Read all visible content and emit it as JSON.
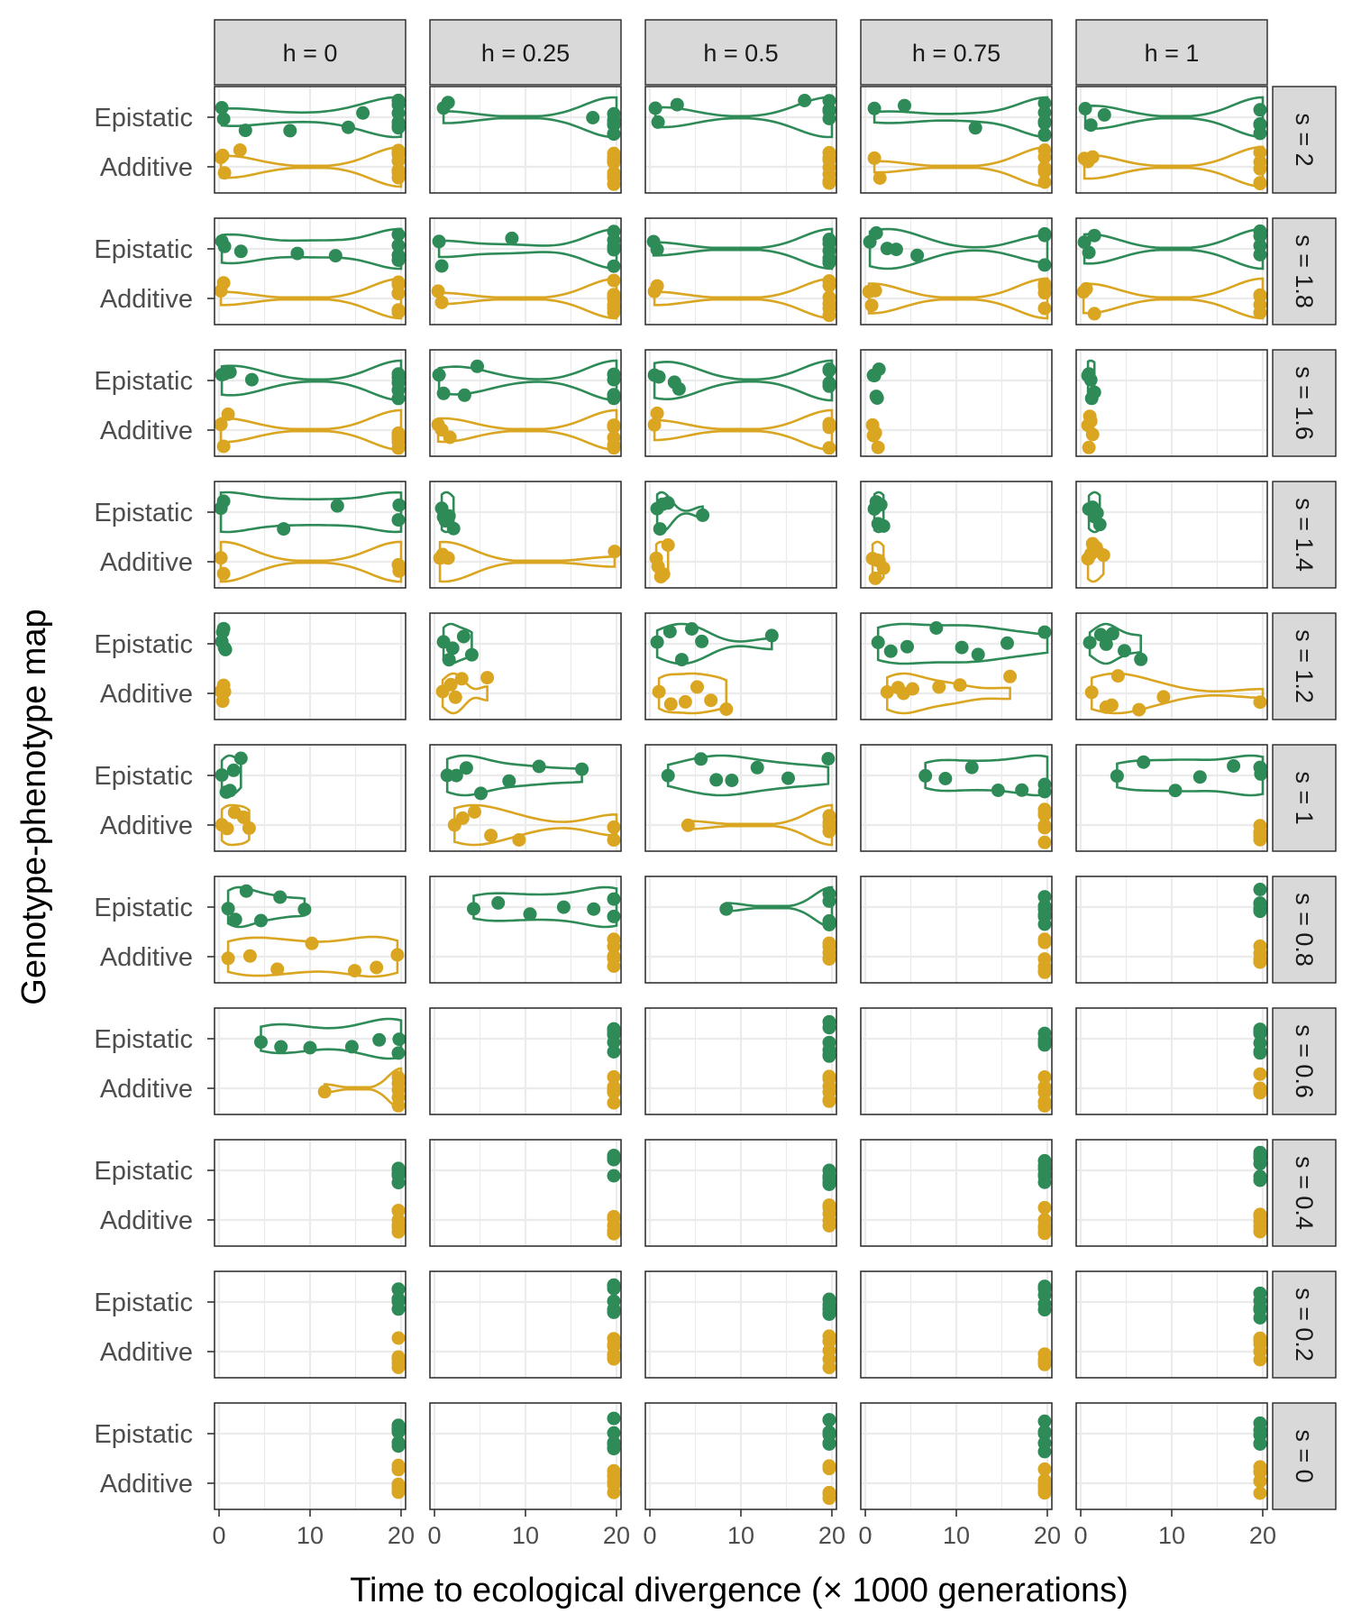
{
  "chart_data": {
    "type": "scatter",
    "subtype": "faceted violin + jittered points",
    "xlabel": "Time to ecological divergence (× 1000 generations)",
    "ylabel": "Genotype-phenotype map",
    "x_ticks": [
      0,
      10,
      20
    ],
    "x_range": [
      -0.5,
      20.5
    ],
    "y_categories": [
      "Epistatic",
      "Additive"
    ],
    "col_facet_labels": [
      "h = 0",
      "h = 0.25",
      "h = 0.5",
      "h = 0.75",
      "h = 1"
    ],
    "row_facet_labels": [
      "s = 2",
      "s = 1.8",
      "s = 1.6",
      "s = 1.4",
      "s = 1.2",
      "s = 1",
      "s = 0.8",
      "s = 0.6",
      "s = 0.4",
      "s = 0.2",
      "s = 0"
    ],
    "colors": {
      "Epistatic": "#2e8b57",
      "Additive": "#daa520"
    },
    "grid": true,
    "legend": "none",
    "panels": {
      "0_0": {
        "Epistatic": [
          0.3,
          0.5,
          7.8,
          14.2,
          15.8,
          2.9,
          20,
          20,
          20,
          20,
          20,
          20
        ],
        "Additive": [
          0.2,
          0.4,
          0.6,
          2.3,
          20,
          20,
          20,
          20,
          20,
          20,
          20
        ]
      },
      "0_1": {
        "Epistatic": [
          1.0,
          1.5,
          17.4,
          20,
          20,
          20,
          20,
          20,
          20
        ],
        "Additive": [
          20,
          20,
          20,
          20,
          20,
          20,
          20,
          20,
          20,
          20
        ]
      },
      "0_2": {
        "Epistatic": [
          0.6,
          0.9,
          3.0,
          17.0,
          20,
          20,
          20,
          20,
          20
        ],
        "Additive": [
          20,
          20,
          20,
          20,
          20,
          20,
          20,
          20,
          20,
          20
        ]
      },
      "0_3": {
        "Epistatic": [
          1.0,
          4.3,
          12.1,
          20,
          20,
          20,
          20,
          20,
          20
        ],
        "Additive": [
          1.0,
          1.6,
          20,
          20,
          20,
          20,
          20,
          20,
          20
        ]
      },
      "0_4": {
        "Epistatic": [
          0.5,
          1.1,
          2.6,
          20,
          20,
          20,
          20,
          20
        ],
        "Additive": [
          0.4,
          0.8,
          1.3,
          20,
          20,
          20,
          20,
          20
        ]
      },
      "1_0": {
        "Epistatic": [
          0.3,
          0.6,
          2.4,
          8.6,
          12.8,
          20,
          20,
          20,
          20
        ],
        "Additive": [
          0.2,
          0.5,
          20,
          20,
          20,
          20,
          20,
          20
        ]
      },
      "1_1": {
        "Epistatic": [
          0.5,
          0.8,
          8.5,
          20,
          20,
          20,
          20,
          20
        ],
        "Additive": [
          0.4,
          0.8,
          20,
          20,
          20,
          20,
          20,
          20,
          20
        ]
      },
      "1_2": {
        "Epistatic": [
          0.4,
          0.8,
          20,
          20,
          20,
          20,
          20,
          20
        ],
        "Additive": [
          0.5,
          0.8,
          20,
          20,
          20,
          20,
          20,
          20
        ]
      },
      "1_3": {
        "Epistatic": [
          0.5,
          1.2,
          2.4,
          3.4,
          5.7,
          20,
          20,
          20
        ],
        "Additive": [
          0.4,
          0.7,
          1.1,
          20,
          20,
          20,
          20
        ]
      },
      "1_4": {
        "Epistatic": [
          0.4,
          0.9,
          1.5,
          20,
          20,
          20,
          20
        ],
        "Additive": [
          0.3,
          0.6,
          1.5,
          20,
          20,
          20,
          20
        ]
      },
      "2_0": {
        "Epistatic": [
          0.3,
          0.6,
          1.2,
          3.6,
          20,
          20,
          20,
          20,
          20
        ],
        "Additive": [
          0.2,
          0.5,
          1.0,
          20,
          20,
          20,
          20,
          20
        ]
      },
      "2_1": {
        "Epistatic": [
          0.5,
          1.0,
          3.3,
          4.7,
          20,
          20,
          20,
          20,
          20
        ],
        "Additive": [
          0.4,
          0.8,
          1.7,
          20,
          20,
          20,
          20,
          20
        ]
      },
      "2_2": {
        "Epistatic": [
          0.5,
          1.0,
          2.7,
          3.2,
          20,
          20,
          20,
          20
        ],
        "Additive": [
          0.5,
          0.8,
          20,
          20,
          20,
          20
        ]
      },
      "2_3": {
        "Epistatic": [
          0.9,
          1.2,
          1.5,
          1.0,
          1.3
        ],
        "Additive": [
          0.8,
          1.1,
          1.4,
          1.0,
          0.9
        ]
      },
      "2_4": {
        "Epistatic": [
          0.8,
          1.1,
          1.5,
          1.2,
          0.9
        ],
        "Additive": [
          0.8,
          1.0,
          1.3,
          1.1,
          0.9
        ]
      },
      "3_0": {
        "Epistatic": [
          0.2,
          0.5,
          7.1,
          13.0,
          19.8,
          20
        ],
        "Additive": [
          0.2,
          0.5,
          19.8,
          20
        ]
      },
      "3_1": {
        "Epistatic": [
          0.8,
          1.2,
          1.6,
          2.1,
          1.0
        ],
        "Additive": [
          0.6,
          1.1,
          1.5,
          19.8,
          0.9
        ]
      },
      "3_2": {
        "Epistatic": [
          0.8,
          1.4,
          2.0,
          5.8,
          1.1
        ],
        "Additive": [
          0.7,
          1.2,
          2.0,
          1.5,
          0.9
        ]
      },
      "3_3": {
        "Epistatic": [
          1.0,
          1.4,
          2.0,
          1.2,
          1.7
        ],
        "Additive": [
          0.8,
          1.3,
          2.0,
          1.5,
          1.1
        ]
      },
      "3_4": {
        "Epistatic": [
          0.9,
          1.3,
          1.8,
          2.1,
          1.5
        ],
        "Additive": [
          0.8,
          1.3,
          2.5,
          1.7,
          1.1
        ]
      },
      "4_0": {
        "Epistatic": [
          0.3,
          0.5,
          0.7,
          0.4,
          0.6
        ],
        "Additive": [
          0.2,
          0.4,
          0.6,
          0.3,
          0.5
        ]
      },
      "4_1": {
        "Epistatic": [
          1.0,
          2.0,
          3.2,
          4.1,
          1.6
        ],
        "Additive": [
          0.9,
          1.8,
          3.0,
          5.8,
          2.3
        ]
      },
      "4_2": {
        "Epistatic": [
          0.8,
          2.2,
          3.5,
          5.7,
          13.4,
          4.6
        ],
        "Additive": [
          1.0,
          2.3,
          3.9,
          6.7,
          8.4,
          5.2
        ]
      },
      "4_3": {
        "Epistatic": [
          1.4,
          2.8,
          4.6,
          7.8,
          10.6,
          12.4,
          15.6,
          20.0
        ],
        "Additive": [
          2.4,
          3.6,
          5.2,
          8.1,
          10.4,
          15.9,
          4.2
        ]
      },
      "4_4": {
        "Epistatic": [
          1.0,
          2.2,
          3.5,
          4.8,
          6.6,
          2.8
        ],
        "Additive": [
          1.2,
          2.8,
          4.1,
          6.4,
          9.1,
          20.0,
          3.4
        ]
      },
      "5_0": {
        "Epistatic": [
          0.3,
          0.8,
          1.6,
          2.4,
          1.2
        ],
        "Additive": [
          0.3,
          0.9,
          1.7,
          2.7,
          3.3
        ]
      },
      "5_1": {
        "Epistatic": [
          1.4,
          2.4,
          5.1,
          8.2,
          11.5,
          16.2,
          3.5
        ],
        "Additive": [
          2.2,
          4.4,
          6.2,
          9.3,
          20.0,
          20.0,
          3.1
        ]
      },
      "5_2": {
        "Epistatic": [
          2.0,
          5.6,
          9.0,
          11.8,
          15.2,
          19.6,
          7.3
        ],
        "Additive": [
          4.2,
          20.0,
          20.0,
          20.0,
          20.0,
          20.0
        ]
      },
      "5_3": {
        "Epistatic": [
          6.6,
          8.8,
          11.7,
          14.6,
          17.2,
          20.0,
          20.0
        ],
        "Additive": [
          20.0,
          20.0,
          20.0,
          20.0,
          20.0,
          20.0
        ]
      },
      "5_4": {
        "Epistatic": [
          4.0,
          6.9,
          10.4,
          13.1,
          16.8,
          19.8,
          20.0
        ],
        "Additive": [
          20.0,
          20.0,
          20.0,
          20.0,
          20.0,
          20.0
        ]
      },
      "6_0": {
        "Epistatic": [
          1.0,
          1.8,
          3.0,
          4.6,
          6.7,
          9.4
        ],
        "Additive": [
          1.0,
          3.4,
          6.4,
          10.2,
          14.9,
          17.3,
          19.6
        ]
      },
      "6_1": {
        "Epistatic": [
          4.3,
          7.0,
          10.5,
          14.2,
          17.5,
          20.0,
          20.0
        ],
        "Additive": [
          20.0,
          20.0,
          20.0,
          20.0,
          20.0,
          20.0
        ]
      },
      "6_2": {
        "Epistatic": [
          8.4,
          20.0,
          20.0,
          20.0,
          20.0,
          20.0
        ],
        "Additive": [
          20.0,
          20.0,
          20.0,
          20.0,
          20.0,
          20.0
        ]
      },
      "6_3": {
        "Epistatic": [
          20.0,
          20.0,
          20.0,
          20.0,
          20.0,
          20.0
        ],
        "Additive": [
          20.0,
          20.0,
          20.0,
          20.0,
          20.0,
          20.0
        ]
      },
      "6_4": {
        "Epistatic": [
          20.0,
          20.0,
          20.0,
          20.0,
          20.0,
          20.0
        ],
        "Additive": [
          20.0,
          20.0,
          20.0,
          20.0,
          20.0,
          20.0
        ]
      },
      "7_0": {
        "Epistatic": [
          4.6,
          6.8,
          10.0,
          14.6,
          17.6,
          19.8,
          20.0
        ],
        "Additive": [
          11.6,
          20.0,
          20.0,
          20.0,
          20.0,
          20.0
        ]
      },
      "7_1": {
        "Epistatic": [
          20.0,
          20.0,
          20.0,
          20.0,
          20.0,
          20.0
        ],
        "Additive": [
          20.0,
          20.0,
          20.0,
          20.0,
          20.0,
          20.0
        ]
      },
      "7_2": {
        "Epistatic": [
          20.0,
          20.0,
          20.0,
          20.0,
          20.0,
          20.0
        ],
        "Additive": [
          20.0,
          20.0,
          20.0,
          20.0,
          20.0,
          20.0
        ]
      },
      "7_3": {
        "Epistatic": [
          20.0,
          20.0,
          20.0,
          20.0,
          20.0,
          20.0
        ],
        "Additive": [
          20.0,
          20.0,
          20.0,
          20.0,
          20.0,
          20.0
        ]
      },
      "7_4": {
        "Epistatic": [
          20.0,
          20.0,
          20.0,
          20.0,
          20.0,
          20.0
        ],
        "Additive": [
          20.0,
          20.0,
          20.0,
          20.0,
          20.0,
          20.0
        ]
      },
      "8_0": {
        "Epistatic": [
          20.0,
          20.0,
          20.0,
          20.0,
          20.0,
          20.0
        ],
        "Additive": [
          20.0,
          20.0,
          20.0,
          20.0,
          20.0,
          20.0
        ]
      },
      "8_1": {
        "Epistatic": [
          20.0,
          20.0,
          20.0,
          20.0,
          20.0,
          20.0
        ],
        "Additive": [
          20.0,
          20.0,
          20.0,
          20.0,
          20.0,
          20.0
        ]
      },
      "8_2": {
        "Epistatic": [
          20.0,
          20.0,
          20.0,
          20.0,
          20.0,
          20.0
        ],
        "Additive": [
          20.0,
          20.0,
          20.0,
          20.0,
          20.0,
          20.0
        ]
      },
      "8_3": {
        "Epistatic": [
          20.0,
          20.0,
          20.0,
          20.0,
          20.0,
          20.0
        ],
        "Additive": [
          20.0,
          20.0,
          20.0,
          20.0,
          20.0,
          20.0
        ]
      },
      "8_4": {
        "Epistatic": [
          20.0,
          20.0,
          20.0,
          20.0,
          20.0,
          20.0
        ],
        "Additive": [
          20.0,
          20.0,
          20.0,
          20.0,
          20.0,
          20.0
        ]
      },
      "9_0": {
        "Epistatic": [
          20.0,
          20.0,
          20.0,
          20.0,
          20.0,
          20.0
        ],
        "Additive": [
          20.0,
          20.0,
          20.0,
          20.0,
          20.0,
          20.0
        ]
      },
      "9_1": {
        "Epistatic": [
          20.0,
          20.0,
          20.0,
          20.0,
          20.0,
          20.0
        ],
        "Additive": [
          20.0,
          20.0,
          20.0,
          20.0,
          20.0,
          20.0
        ]
      },
      "9_2": {
        "Epistatic": [
          20.0,
          20.0,
          20.0,
          20.0,
          20.0,
          20.0
        ],
        "Additive": [
          20.0,
          20.0,
          20.0,
          20.0,
          20.0,
          20.0
        ]
      },
      "9_3": {
        "Epistatic": [
          20.0,
          20.0,
          20.0,
          20.0,
          20.0,
          20.0
        ],
        "Additive": [
          20.0,
          20.0,
          20.0,
          20.0,
          20.0,
          20.0
        ]
      },
      "9_4": {
        "Epistatic": [
          20.0,
          20.0,
          20.0,
          20.0,
          20.0,
          20.0
        ],
        "Additive": [
          20.0,
          20.0,
          20.0,
          20.0,
          20.0,
          20.0
        ]
      },
      "10_0": {
        "Epistatic": [
          20.0,
          20.0,
          20.0,
          20.0,
          20.0,
          20.0
        ],
        "Additive": [
          20.0,
          20.0,
          20.0,
          20.0,
          20.0,
          20.0
        ]
      },
      "10_1": {
        "Epistatic": [
          20.0,
          20.0,
          20.0,
          20.0,
          20.0,
          20.0
        ],
        "Additive": [
          20.0,
          20.0,
          20.0,
          20.0,
          20.0,
          20.0
        ]
      },
      "10_2": {
        "Epistatic": [
          20.0,
          20.0,
          20.0,
          20.0,
          20.0,
          20.0
        ],
        "Additive": [
          20.0,
          20.0,
          20.0,
          20.0,
          20.0,
          20.0
        ]
      },
      "10_3": {
        "Epistatic": [
          20.0,
          20.0,
          20.0,
          20.0,
          20.0,
          20.0
        ],
        "Additive": [
          20.0,
          20.0,
          20.0,
          20.0,
          20.0,
          20.0
        ]
      },
      "10_4": {
        "Epistatic": [
          20.0,
          20.0,
          20.0,
          20.0,
          20.0,
          20.0
        ],
        "Additive": [
          20.0,
          20.0,
          20.0,
          20.0,
          20.0,
          20.0
        ]
      }
    }
  }
}
